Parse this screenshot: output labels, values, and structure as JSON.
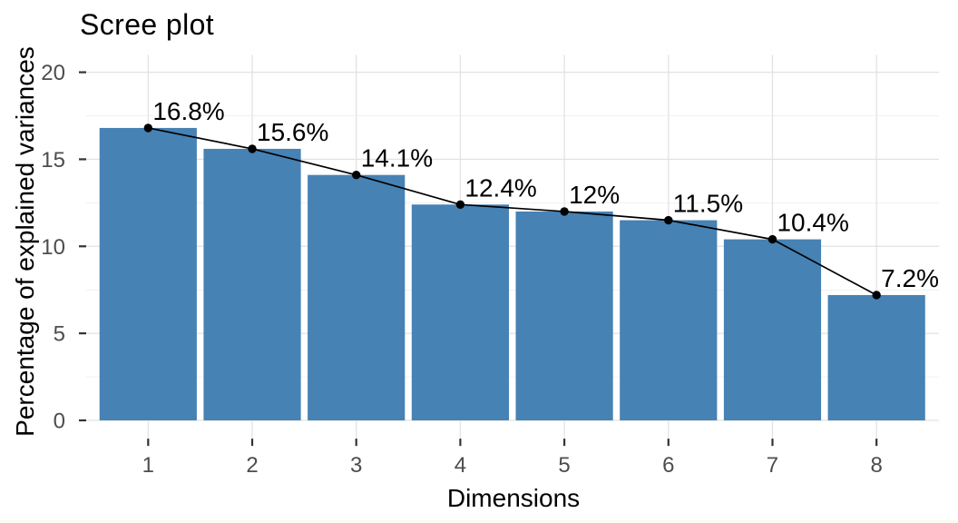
{
  "chart_data": {
    "type": "bar",
    "overlay": "line-with-points",
    "title": "Scree plot",
    "xlabel": "Dimensions",
    "ylabel": "Percentage of explained variances",
    "categories": [
      "1",
      "2",
      "3",
      "4",
      "5",
      "6",
      "7",
      "8"
    ],
    "values": [
      16.8,
      15.6,
      14.1,
      12.4,
      12,
      11.5,
      10.4,
      7.2
    ],
    "point_labels": [
      "16.8%",
      "15.6%",
      "14.1%",
      "12.4%",
      "12%",
      "11.5%",
      "10.4%",
      "7.2%"
    ],
    "y_ticks": [
      0,
      5,
      10,
      15,
      20
    ],
    "y_minor_ticks": [
      2.5,
      7.5,
      12.5,
      17.5
    ],
    "ylim": [
      -1.05,
      21
    ],
    "grid": "major-and-minor, no panel border",
    "legend": "none",
    "colors": {
      "bar_fill": "#4682B4",
      "line": "#000000",
      "point": "#000000",
      "grid_major": "#e3e3e3",
      "grid_minor": "#f1f1f1",
      "tick_mark": "#333333",
      "tick_label": "#4d4d4d",
      "text": "#000000",
      "background": "#ffffff"
    }
  }
}
